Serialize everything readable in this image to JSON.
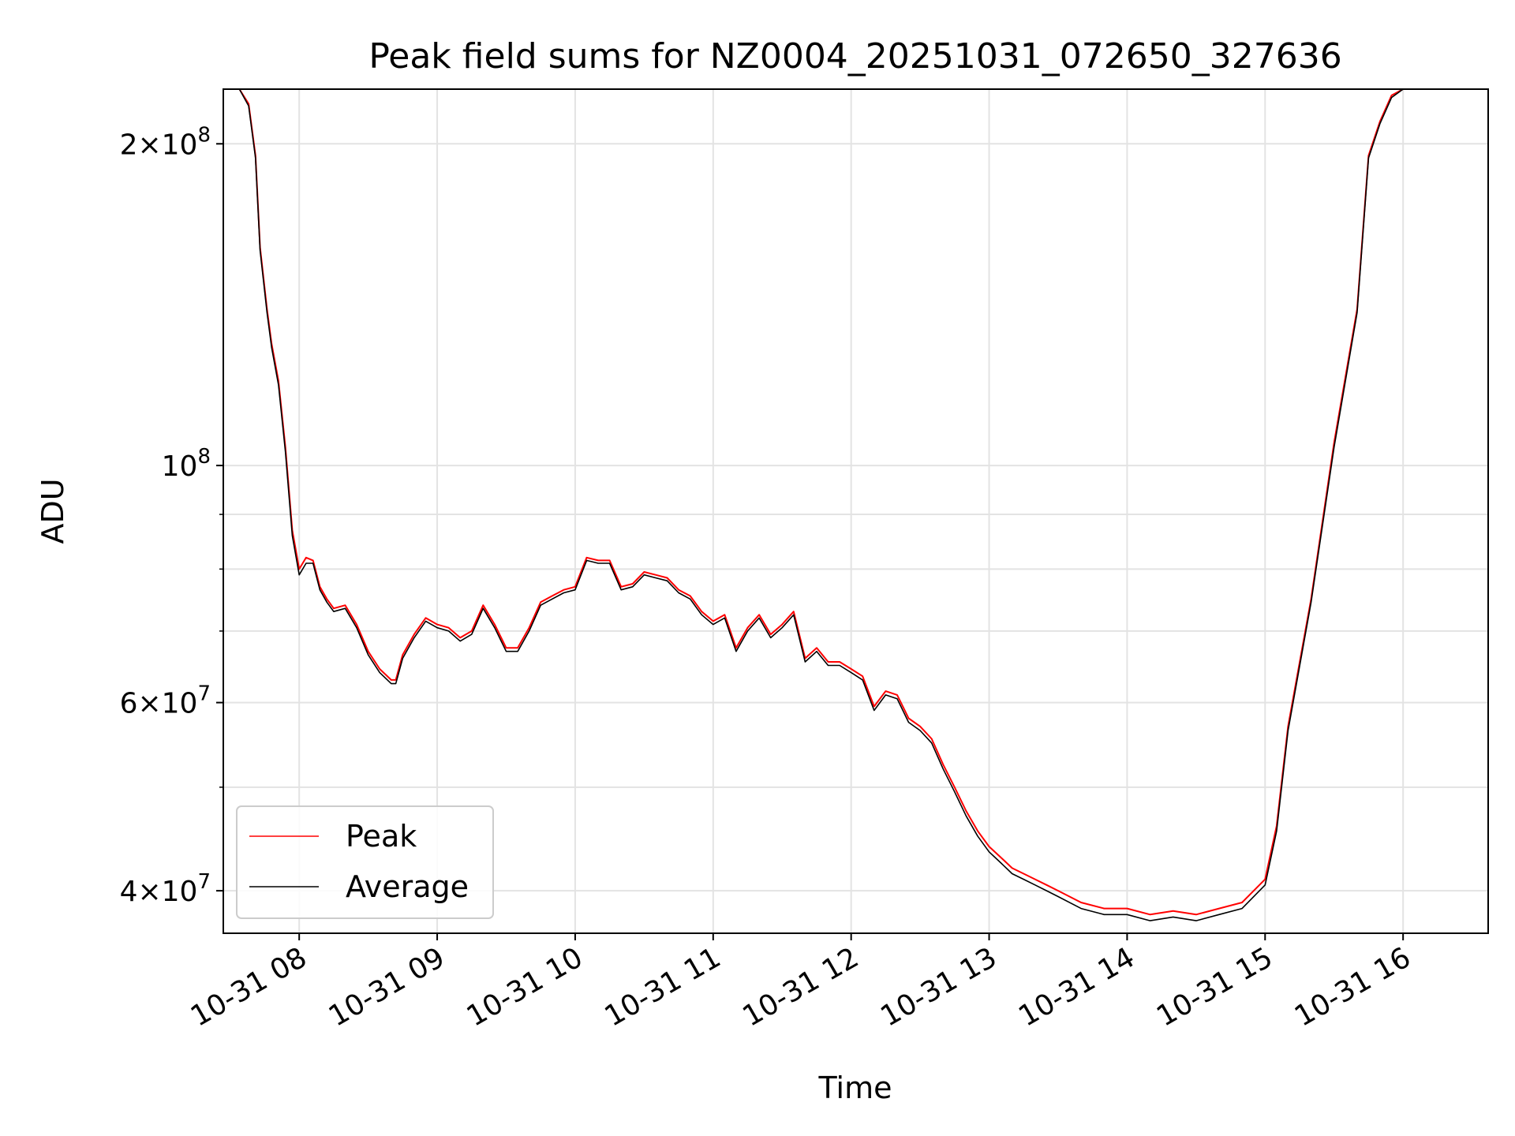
{
  "chart_data": {
    "type": "line",
    "title": "Peak field sums for NZ0004_20251031_072650_327636",
    "xlabel": "Time",
    "ylabel": "ADU",
    "y_scale": "log",
    "ylim": [
      36500000,
      225000000
    ],
    "xlim": [
      "2025-10-31T07:27",
      "2025-10-31T16:37"
    ],
    "grid": true,
    "legend_position": "lower-left",
    "x_ticks": [
      "10-31 08",
      "10-31 09",
      "10-31 10",
      "10-31 11",
      "10-31 12",
      "10-31 13",
      "10-31 14",
      "10-31 15",
      "10-31 16"
    ],
    "y_ticks": [
      {
        "value": 40000000,
        "mantissa": "4",
        "exponent": "7"
      },
      {
        "value": 60000000,
        "mantissa": "6",
        "exponent": "7"
      },
      {
        "value": 100000000,
        "mantissa": "",
        "exponent": "8"
      },
      {
        "value": 200000000,
        "mantissa": "2",
        "exponent": "8"
      }
    ],
    "series": [
      {
        "name": "Peak",
        "color": "#ff0000",
        "x": [
          "2025-10-31T07:27",
          "2025-10-31T07:34",
          "2025-10-31T07:38",
          "2025-10-31T07:41",
          "2025-10-31T07:43",
          "2025-10-31T07:46",
          "2025-10-31T07:48",
          "2025-10-31T07:51",
          "2025-10-31T07:54",
          "2025-10-31T07:57",
          "2025-10-31T08:00",
          "2025-10-31T08:03",
          "2025-10-31T08:06",
          "2025-10-31T08:09",
          "2025-10-31T08:12",
          "2025-10-31T08:15",
          "2025-10-31T08:20",
          "2025-10-31T08:25",
          "2025-10-31T08:30",
          "2025-10-31T08:35",
          "2025-10-31T08:40",
          "2025-10-31T08:42",
          "2025-10-31T08:45",
          "2025-10-31T08:50",
          "2025-10-31T08:55",
          "2025-10-31T09:00",
          "2025-10-31T09:05",
          "2025-10-31T09:10",
          "2025-10-31T09:15",
          "2025-10-31T09:20",
          "2025-10-31T09:25",
          "2025-10-31T09:30",
          "2025-10-31T09:35",
          "2025-10-31T09:40",
          "2025-10-31T09:45",
          "2025-10-31T09:50",
          "2025-10-31T09:55",
          "2025-10-31T10:00",
          "2025-10-31T10:05",
          "2025-10-31T10:10",
          "2025-10-31T10:15",
          "2025-10-31T10:20",
          "2025-10-31T10:25",
          "2025-10-31T10:30",
          "2025-10-31T10:35",
          "2025-10-31T10:40",
          "2025-10-31T10:45",
          "2025-10-31T10:50",
          "2025-10-31T10:55",
          "2025-10-31T11:00",
          "2025-10-31T11:05",
          "2025-10-31T11:10",
          "2025-10-31T11:15",
          "2025-10-31T11:20",
          "2025-10-31T11:25",
          "2025-10-31T11:30",
          "2025-10-31T11:35",
          "2025-10-31T11:40",
          "2025-10-31T11:45",
          "2025-10-31T11:50",
          "2025-10-31T11:55",
          "2025-10-31T12:00",
          "2025-10-31T12:05",
          "2025-10-31T12:10",
          "2025-10-31T12:15",
          "2025-10-31T12:20",
          "2025-10-31T12:25",
          "2025-10-31T12:30",
          "2025-10-31T12:35",
          "2025-10-31T12:40",
          "2025-10-31T12:45",
          "2025-10-31T12:50",
          "2025-10-31T12:55",
          "2025-10-31T13:00",
          "2025-10-31T13:05",
          "2025-10-31T13:10",
          "2025-10-31T13:15",
          "2025-10-31T13:20",
          "2025-10-31T13:25",
          "2025-10-31T13:30",
          "2025-10-31T13:40",
          "2025-10-31T13:50",
          "2025-10-31T14:00",
          "2025-10-31T14:10",
          "2025-10-31T14:20",
          "2025-10-31T14:30",
          "2025-10-31T14:40",
          "2025-10-31T14:50",
          "2025-10-31T15:00",
          "2025-10-31T15:05",
          "2025-10-31T15:10",
          "2025-10-31T15:20",
          "2025-10-31T15:30",
          "2025-10-31T15:40",
          "2025-10-31T15:45",
          "2025-10-31T15:50",
          "2025-10-31T15:55",
          "2025-10-31T16:00",
          "2025-10-31T16:05",
          "2025-10-31T16:10",
          "2025-10-31T16:15",
          "2025-10-31T16:20",
          "2025-10-31T16:25",
          "2025-10-31T16:28",
          "2025-10-31T16:32",
          "2025-10-31T16:37"
        ],
        "y": [
          225000000,
          225000000,
          218000000,
          195000000,
          160000000,
          140000000,
          130000000,
          120000000,
          104000000,
          87000000,
          80000000,
          82000000,
          81500000,
          77000000,
          75000000,
          73500000,
          74000000,
          71000000,
          67000000,
          64500000,
          63000000,
          63000000,
          66500000,
          69500000,
          72000000,
          71000000,
          70500000,
          69000000,
          70000000,
          74000000,
          71000000,
          67500000,
          67500000,
          70500000,
          74500000,
          75500000,
          76500000,
          77000000,
          82000000,
          81500000,
          81500000,
          77000000,
          77500000,
          79500000,
          79000000,
          78500000,
          76500000,
          75500000,
          73000000,
          71500000,
          72500000,
          67500000,
          70500000,
          72500000,
          69500000,
          71000000,
          73000000,
          66000000,
          67500000,
          65500000,
          65500000,
          64500000,
          63500000,
          59500000,
          61500000,
          61000000,
          58000000,
          57000000,
          55500000,
          52500000,
          50000000,
          47500000,
          45500000,
          44000000,
          43000000,
          42000000,
          41500000,
          41000000,
          40500000,
          40000000,
          39000000,
          38500000,
          38500000,
          38000000,
          38300000,
          38000000,
          38500000,
          39000000,
          41000000,
          46000000,
          57000000,
          75000000,
          105000000,
          140000000,
          195000000,
          210000000,
          222000000,
          225000000,
          225000000,
          225000000,
          225000000,
          225000000,
          225000000,
          225000000,
          225000000,
          225000000
        ]
      },
      {
        "name": "Average",
        "color": "#000000",
        "x": [
          "2025-10-31T07:27",
          "2025-10-31T07:34",
          "2025-10-31T07:38",
          "2025-10-31T07:41",
          "2025-10-31T07:43",
          "2025-10-31T07:46",
          "2025-10-31T07:48",
          "2025-10-31T07:51",
          "2025-10-31T07:54",
          "2025-10-31T07:57",
          "2025-10-31T08:00",
          "2025-10-31T08:03",
          "2025-10-31T08:06",
          "2025-10-31T08:09",
          "2025-10-31T08:12",
          "2025-10-31T08:15",
          "2025-10-31T08:20",
          "2025-10-31T08:25",
          "2025-10-31T08:30",
          "2025-10-31T08:35",
          "2025-10-31T08:40",
          "2025-10-31T08:42",
          "2025-10-31T08:45",
          "2025-10-31T08:50",
          "2025-10-31T08:55",
          "2025-10-31T09:00",
          "2025-10-31T09:05",
          "2025-10-31T09:10",
          "2025-10-31T09:15",
          "2025-10-31T09:20",
          "2025-10-31T09:25",
          "2025-10-31T09:30",
          "2025-10-31T09:35",
          "2025-10-31T09:40",
          "2025-10-31T09:45",
          "2025-10-31T09:50",
          "2025-10-31T09:55",
          "2025-10-31T10:00",
          "2025-10-31T10:05",
          "2025-10-31T10:10",
          "2025-10-31T10:15",
          "2025-10-31T10:20",
          "2025-10-31T10:25",
          "2025-10-31T10:30",
          "2025-10-31T10:35",
          "2025-10-31T10:40",
          "2025-10-31T10:45",
          "2025-10-31T10:50",
          "2025-10-31T10:55",
          "2025-10-31T11:00",
          "2025-10-31T11:05",
          "2025-10-31T11:10",
          "2025-10-31T11:15",
          "2025-10-31T11:20",
          "2025-10-31T11:25",
          "2025-10-31T11:30",
          "2025-10-31T11:35",
          "2025-10-31T11:40",
          "2025-10-31T11:45",
          "2025-10-31T11:50",
          "2025-10-31T11:55",
          "2025-10-31T12:00",
          "2025-10-31T12:05",
          "2025-10-31T12:10",
          "2025-10-31T12:15",
          "2025-10-31T12:20",
          "2025-10-31T12:25",
          "2025-10-31T12:30",
          "2025-10-31T12:35",
          "2025-10-31T12:40",
          "2025-10-31T12:45",
          "2025-10-31T12:50",
          "2025-10-31T12:55",
          "2025-10-31T13:00",
          "2025-10-31T13:05",
          "2025-10-31T13:10",
          "2025-10-31T13:15",
          "2025-10-31T13:20",
          "2025-10-31T13:25",
          "2025-10-31T13:30",
          "2025-10-31T13:40",
          "2025-10-31T13:50",
          "2025-10-31T14:00",
          "2025-10-31T14:10",
          "2025-10-31T14:20",
          "2025-10-31T14:30",
          "2025-10-31T14:40",
          "2025-10-31T14:50",
          "2025-10-31T15:00",
          "2025-10-31T15:05",
          "2025-10-31T15:10",
          "2025-10-31T15:20",
          "2025-10-31T15:30",
          "2025-10-31T15:40",
          "2025-10-31T15:45",
          "2025-10-31T15:50",
          "2025-10-31T15:55",
          "2025-10-31T16:00",
          "2025-10-31T16:05",
          "2025-10-31T16:10",
          "2025-10-31T16:15",
          "2025-10-31T16:20",
          "2025-10-31T16:25",
          "2025-10-31T16:28",
          "2025-10-31T16:32",
          "2025-10-31T16:37"
        ],
        "y": [
          225000000,
          225000000,
          217000000,
          194000000,
          159000000,
          139000000,
          129000000,
          119000000,
          103000000,
          86000000,
          79000000,
          81000000,
          81000000,
          76500000,
          74500000,
          73000000,
          73500000,
          70500000,
          66500000,
          64000000,
          62500000,
          62500000,
          66000000,
          69000000,
          71500000,
          70500000,
          70000000,
          68500000,
          69500000,
          73500000,
          70500000,
          67000000,
          67000000,
          70000000,
          74000000,
          75000000,
          76000000,
          76500000,
          81500000,
          81000000,
          81000000,
          76500000,
          77000000,
          79000000,
          78500000,
          78000000,
          76000000,
          75000000,
          72500000,
          71000000,
          72000000,
          67000000,
          70000000,
          72000000,
          69000000,
          70500000,
          72500000,
          65500000,
          67000000,
          65000000,
          65000000,
          64000000,
          63000000,
          59000000,
          61000000,
          60500000,
          57500000,
          56500000,
          55000000,
          52000000,
          49500000,
          47000000,
          45000000,
          43500000,
          42500000,
          41500000,
          41000000,
          40500000,
          40000000,
          39500000,
          38500000,
          38000000,
          38000000,
          37500000,
          37800000,
          37500000,
          38000000,
          38500000,
          40500000,
          45500000,
          56500000,
          74500000,
          104000000,
          139000000,
          194000000,
          209000000,
          221000000,
          225000000,
          225000000,
          225000000,
          225000000,
          225000000,
          225000000,
          225000000,
          225000000,
          225000000
        ]
      }
    ]
  }
}
